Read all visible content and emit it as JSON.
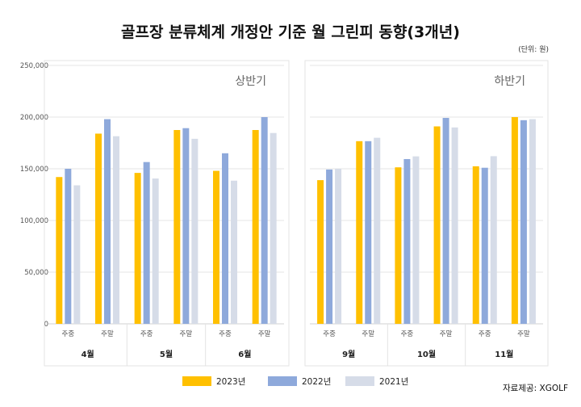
{
  "chart_data": {
    "type": "bar",
    "title": "골프장 분류체계 개정안 기준 월 그린피 동향(3개년)",
    "unit_note": "(단위: 원)",
    "source": "자료제공: XGOLF",
    "ylim": [
      0,
      250000
    ],
    "yticks": [
      "0",
      "50,000",
      "100,000",
      "150,000",
      "200,000",
      "250,000"
    ],
    "grid": true,
    "legend_position": "bottom",
    "series_colors": [
      "#FFC000",
      "#8EA9DB",
      "#D6DCE8"
    ],
    "series_names": [
      "2023년",
      "2022년",
      "2021년"
    ],
    "panels": [
      {
        "label": "상반기",
        "months": [
          "4월",
          "5월",
          "6월"
        ],
        "categories": [
          "주중",
          "주말",
          "주중",
          "주말",
          "주중",
          "주말"
        ],
        "series": [
          {
            "name": "2023년",
            "values": [
              142000,
              184000,
              146000,
              187500,
              148000,
              187500
            ]
          },
          {
            "name": "2022년",
            "values": [
              150000,
              198000,
              156500,
              189300,
              165000,
              200000
            ]
          },
          {
            "name": "2021년",
            "values": [
              134000,
              181500,
              140600,
              179000,
              138500,
              184600
            ]
          }
        ]
      },
      {
        "label": "하반기",
        "months": [
          "9월",
          "10월",
          "11월"
        ],
        "categories": [
          "주중",
          "주말",
          "주중",
          "주말",
          "주중",
          "주말"
        ],
        "series": [
          {
            "name": "2023년",
            "values": [
              139000,
              176700,
              151400,
              191000,
              152400,
              200000
            ]
          },
          {
            "name": "2022년",
            "values": [
              149300,
              176700,
              159400,
              199200,
              151000,
              197000
            ]
          },
          {
            "name": "2021년",
            "values": [
              150000,
              180000,
              162000,
              190000,
              162200,
              198000
            ]
          }
        ]
      }
    ]
  }
}
